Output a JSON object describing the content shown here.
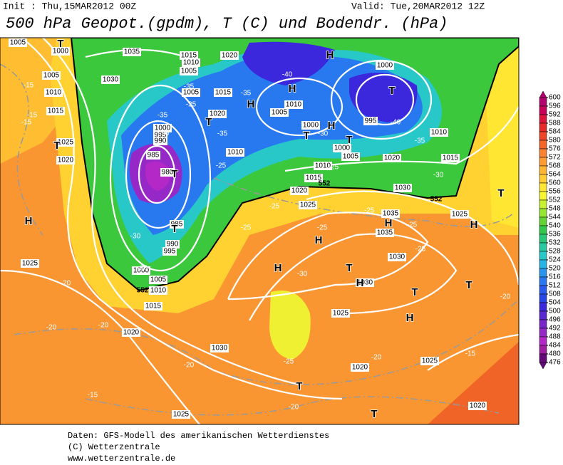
{
  "header": {
    "init": "Init : Thu,15MAR2012 00Z",
    "valid": "Valid: Tue,20MAR2012 12Z",
    "title": "500 hPa Geopot.(gpdm), T (C) und Bodendr. (hPa)"
  },
  "colorbar": {
    "levels": [
      600,
      596,
      592,
      588,
      584,
      580,
      576,
      572,
      568,
      564,
      560,
      556,
      552,
      548,
      544,
      540,
      536,
      532,
      528,
      524,
      520,
      516,
      512,
      508,
      504,
      500,
      496,
      492,
      488,
      484,
      480,
      476
    ],
    "colors": [
      "#b4006e",
      "#c8005a",
      "#dc143c",
      "#e62828",
      "#f04628",
      "#f56428",
      "#fa8232",
      "#ff9b32",
      "#ffb432",
      "#ffcd32",
      "#ffe632",
      "#f5f532",
      "#c8f032",
      "#96e632",
      "#64d232",
      "#32c84b",
      "#28c878",
      "#28c8a0",
      "#28c8c8",
      "#28b4e6",
      "#2896f0",
      "#2878f0",
      "#285af0",
      "#2846e6",
      "#3c28dc",
      "#5a28d2",
      "#7828c8",
      "#9628c8",
      "#b428c8",
      "#a01ea0",
      "#640a78"
    ]
  },
  "map": {
    "pressure_labels": [
      "1005",
      "1000",
      "1035",
      "1015",
      "1020",
      "1010",
      "1005",
      "1030",
      "1005",
      "1010",
      "1015",
      "1025",
      "1020",
      "1005",
      "1015",
      "1020",
      "1000",
      "995",
      "990",
      "985",
      "980",
      "1010",
      "1005",
      "1010",
      "1000",
      "995",
      "1000",
      "1000",
      "1005",
      "1010",
      "1015",
      "1020",
      "1010",
      "1015",
      "1030",
      "1020",
      "1025",
      "1035",
      "1035",
      "1030",
      "1025",
      "985",
      "990",
      "995",
      "1000",
      "1005",
      "1010",
      "1015",
      "1025",
      "1020",
      "1030",
      "1025",
      "1020",
      "1025",
      "1025",
      "1020",
      "1030"
    ],
    "temperature_labels": [
      "-15",
      "-15",
      "-15",
      "-35",
      "-35",
      "-35",
      "-35",
      "-30",
      "-35",
      "-40",
      "-40",
      "-35",
      "-30",
      "-30",
      "-25",
      "-25",
      "-25",
      "-25",
      "-25",
      "-25",
      "-25",
      "-30",
      "-30",
      "-25",
      "-30",
      "-20",
      "-20",
      "-20",
      "-20",
      "-20",
      "-25",
      "-20",
      "-15",
      "-15",
      "-20"
    ],
    "centers": [
      "T",
      "H",
      "T",
      "H",
      "T",
      "T",
      "T",
      "T",
      "H",
      "T",
      "H",
      "T",
      "H",
      "H",
      "H",
      "H",
      "T",
      "H",
      "T",
      "T",
      "H",
      "T",
      "T",
      "T",
      "H"
    ],
    "geopotential_labels": [
      "552",
      "552",
      "552"
    ]
  },
  "footer": {
    "lines": [
      "Daten: GFS-Modell des amerikanischen Wetterdienstes",
      "(C) Wetterzentrale",
      "www.wetterzentrale.de"
    ]
  }
}
